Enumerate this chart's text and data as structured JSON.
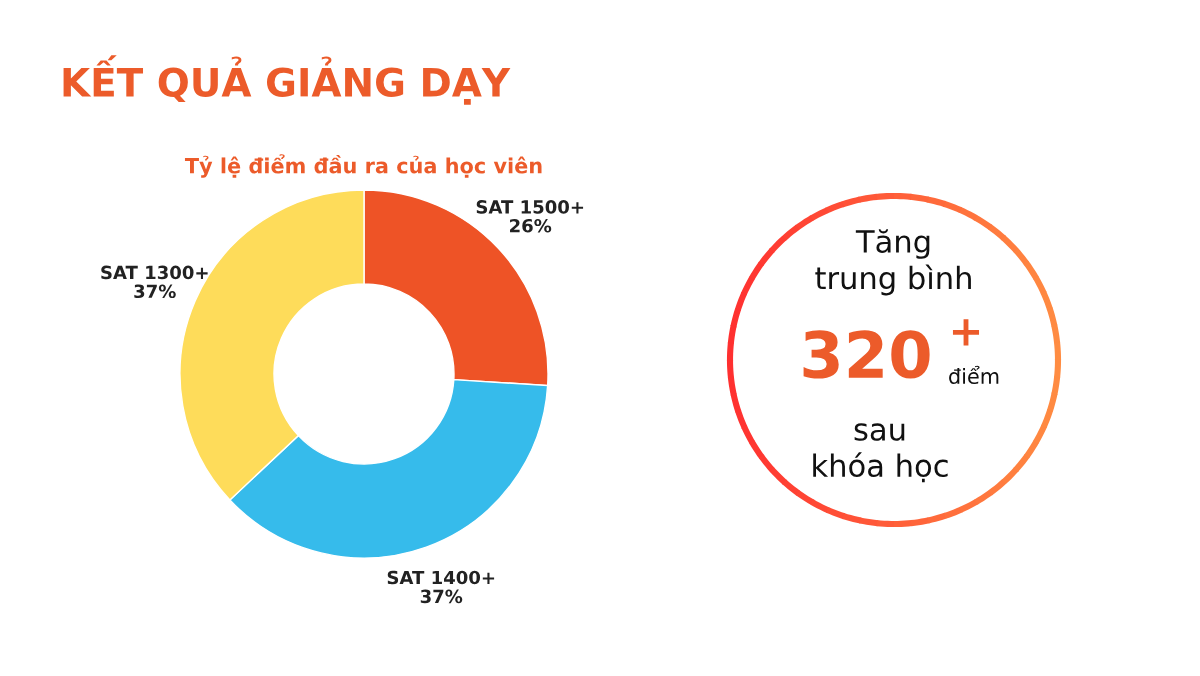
{
  "chart_data": [
    {
      "type": "donut",
      "title": "KẾT QUẢ GIẢNG DẠY",
      "subtitle": "Tỷ lệ điểm đầu ra của học viên",
      "categories": [
        "SAT 1500+",
        "SAT 1400+",
        "SAT 1300+"
      ],
      "values": [
        26,
        37,
        37
      ],
      "colors": [
        "#ee5326",
        "#36bbeb",
        "#fedc5a"
      ],
      "value_labels": [
        "26%",
        "37%",
        "37%"
      ]
    },
    {
      "type": "other",
      "annotations": [
        "Tăng",
        "trung bình",
        "320",
        "+",
        "điểm",
        "sau",
        "khóa học"
      ]
    }
  ]
}
